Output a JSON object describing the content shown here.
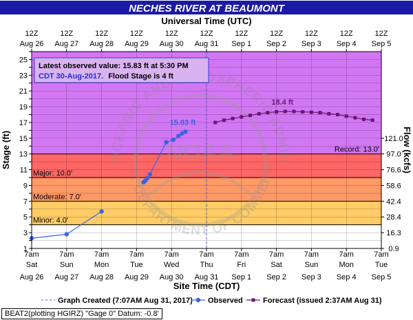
{
  "title": "NECHES RIVER AT BEAUMONT",
  "top_axis_title": "Universal Time (UTC)",
  "bottom_axis_title": "Site Time (CDT)",
  "left_axis_title": "Stage (ft)",
  "right_axis_title": "Flow (kcfs)",
  "top_ticks": [
    {
      "l1": "12Z",
      "l2": "Aug 26"
    },
    {
      "l1": "12Z",
      "l2": "Aug 27"
    },
    {
      "l1": "12Z",
      "l2": "Aug 28"
    },
    {
      "l1": "12Z",
      "l2": "Aug 29"
    },
    {
      "l1": "12Z",
      "l2": "Aug 30"
    },
    {
      "l1": "12Z",
      "l2": "Aug 31"
    },
    {
      "l1": "12Z",
      "l2": "Sep 1"
    },
    {
      "l1": "12Z",
      "l2": "Sep 2"
    },
    {
      "l1": "12Z",
      "l2": "Sep 3"
    },
    {
      "l1": "12Z",
      "l2": "Sep 4"
    },
    {
      "l1": "12Z",
      "l2": "Sep 5"
    }
  ],
  "bottom_ticks": [
    {
      "l1": "7am",
      "l2": "Sat",
      "l3": "Aug 26"
    },
    {
      "l1": "7am",
      "l2": "Sun",
      "l3": "Aug 27"
    },
    {
      "l1": "7am",
      "l2": "Mon",
      "l3": "Aug 28"
    },
    {
      "l1": "7am",
      "l2": "Tue",
      "l3": "Aug 29"
    },
    {
      "l1": "7am",
      "l2": "Wed",
      "l3": "Aug 30"
    },
    {
      "l1": "7am",
      "l2": "Thu",
      "l3": "Aug 31"
    },
    {
      "l1": "7am",
      "l2": "Fri",
      "l3": "Sep 1"
    },
    {
      "l1": "7am",
      "l2": "Sat",
      "l3": "Sep 2"
    },
    {
      "l1": "7am",
      "l2": "Sun",
      "l3": "Sep 3"
    },
    {
      "l1": "7am",
      "l2": "Mon",
      "l3": "Sep 4"
    },
    {
      "l1": "7am",
      "l2": "Tue",
      "l3": "Sep 5"
    }
  ],
  "right_ticks": [
    {
      "stage": 1,
      "label": "0.9"
    },
    {
      "stage": 3,
      "label": "16.3"
    },
    {
      "stage": 5,
      "label": "28.4"
    },
    {
      "stage": 7,
      "label": "42.4"
    },
    {
      "stage": 9,
      "label": "58.6"
    },
    {
      "stage": 11,
      "label": "76.6"
    },
    {
      "stage": 13,
      "label": "97.0"
    },
    {
      "stage": 15,
      "label": "121.0"
    }
  ],
  "info_box": {
    "line1": "Latest observed value: 15.83 ft at 5:30 PM",
    "line2a": "CDT 30-Aug-2017.",
    "line2b": "Flood Stage is 4 ft"
  },
  "legend": {
    "graph_created": "Graph Created (7:07AM Aug 31, 2017)",
    "observed": "Observed",
    "forecast": "Forecast (issued 2:37AM Aug 31)"
  },
  "footer": "BEAT2(plotting HGIRZ) \"Gage 0\" Datum: -0.8'",
  "watermark": {
    "top_text": "NATIONAL OCEANIC AND ATMOSPHERIC ADMINISTRATION",
    "bottom_text": "U.S. DEPARTMENT OF COMMERCE",
    "logo_text": "NOAA"
  },
  "colors": {
    "title_bg": "#1a1aa6",
    "minor": "#ffcc66",
    "moderate": "#ff9966",
    "major": "#ff6666",
    "record": "#d277f4",
    "observed": "#3a62e6",
    "forecast": "#6d1573",
    "info_text": "#1e2edc",
    "now_line": "#5050c8"
  },
  "chart_data": {
    "type": "line",
    "title": "NECHES RIVER AT BEAUMONT",
    "xlabel": "Site Time (CDT)",
    "ylabel": "Stage (ft)",
    "y2label": "Flow (kcfs)",
    "x_unit": "days since 7am CDT Aug 26",
    "xlim": [
      0,
      10
    ],
    "ylim": [
      1,
      26
    ],
    "grid": true,
    "thresholds": [
      {
        "name": "Minor",
        "label": "Minor: 4.0'",
        "stage": 4.0
      },
      {
        "name": "Moderate",
        "label": "Moderate: 7.0'",
        "stage": 7.0
      },
      {
        "name": "Major",
        "label": "Major: 10.0'",
        "stage": 10.0
      },
      {
        "name": "Record",
        "label": "Record: 13.0'",
        "stage": 13.0
      }
    ],
    "now_x": 5.0,
    "series": [
      {
        "name": "Observed",
        "color": "#3a62e6",
        "x": [
          0.0,
          1.0,
          2.0
        ],
        "y": [
          2.3,
          2.8,
          5.7
        ]
      },
      {
        "name": "Observed",
        "color": "#3a62e6",
        "x": [
          3.2,
          3.25,
          3.3,
          3.38,
          3.85,
          4.05,
          4.2,
          4.3,
          4.4
        ],
        "y": [
          9.4,
          9.6,
          9.9,
          10.4,
          14.5,
          14.8,
          15.3,
          15.6,
          15.83
        ]
      },
      {
        "name": "Forecast",
        "color": "#6d1573",
        "x": [
          5.25,
          5.5,
          5.75,
          6.0,
          6.25,
          6.5,
          6.75,
          7.0,
          7.25,
          7.5,
          7.75,
          8.0,
          8.25,
          8.5,
          8.75,
          9.0,
          9.25,
          9.5,
          9.75
        ],
        "y": [
          17.0,
          17.3,
          17.5,
          17.7,
          17.9,
          18.1,
          18.25,
          18.35,
          18.4,
          18.4,
          18.35,
          18.3,
          18.25,
          18.1,
          18.0,
          17.8,
          17.6,
          17.4,
          17.3
        ]
      }
    ],
    "annotations": [
      {
        "text": "15.83 ft",
        "x": 4.4,
        "y": 15.83,
        "series": "Observed"
      },
      {
        "text": "18.4 ft",
        "x": 7.25,
        "y": 18.4,
        "series": "Forecast"
      }
    ]
  }
}
